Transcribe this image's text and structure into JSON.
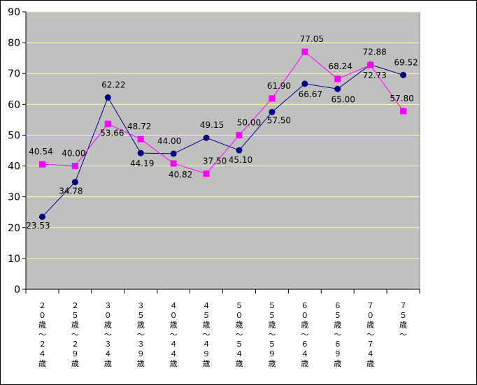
{
  "chart_data": {
    "type": "line",
    "title": "",
    "xlabel": "",
    "ylabel": "",
    "ylim": [
      0,
      90
    ],
    "yticks": [
      "0",
      "10",
      "20",
      "30",
      "40",
      "50",
      "60",
      "70",
      "80",
      "90"
    ],
    "grid": true,
    "legend": "none",
    "colors": {
      "plot_bg": "#c0c0c0",
      "grid": "#ffff99"
    },
    "categories": [
      "２０歳～２４歳",
      "２５歳～２９歳",
      "３０歳～３４歳",
      "３５歳～３９歳",
      "４０歳～４４歳",
      "４５歳～４９歳",
      "５０歳～５４歳",
      "５５歳～５９歳",
      "６０歳～６４歳",
      "６５歳～６９歳",
      "７０歳～７４歳",
      "７５歳～"
    ],
    "series": [
      {
        "color": "#000080",
        "marker": "circle",
        "values": [
          23.53,
          34.78,
          62.22,
          44.19,
          44.0,
          49.15,
          45.1,
          57.5,
          66.67,
          65.0,
          72.88,
          69.52
        ],
        "labels": [
          "23.53",
          "34.78",
          "62.22",
          "44.19",
          "44.00",
          "49.15",
          "45.10",
          "57.50",
          "66.67",
          "65.00",
          "72.88",
          "69.52"
        ]
      },
      {
        "color": "#ff00ff",
        "marker": "square",
        "values": [
          40.54,
          40.0,
          53.66,
          48.72,
          40.82,
          37.5,
          50.0,
          61.9,
          77.05,
          68.24,
          72.73,
          57.8
        ],
        "labels": [
          "40.54",
          "40.00",
          "53.66",
          "48.72",
          "40.82",
          "37.50",
          "50.00",
          "61.90",
          "77.05",
          "68.24",
          "72.73",
          "57.80"
        ]
      }
    ]
  }
}
